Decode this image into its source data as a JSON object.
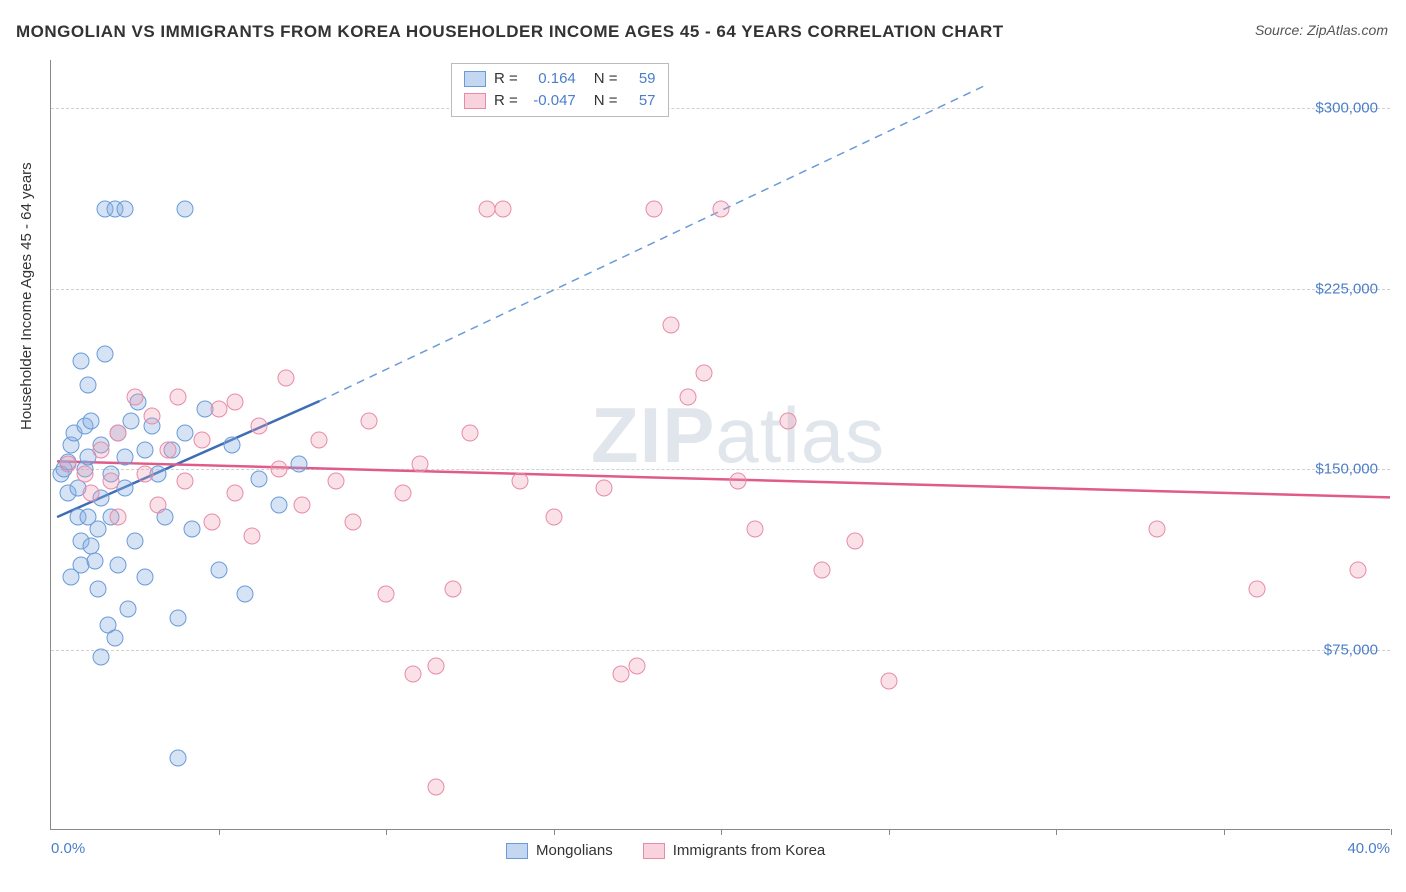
{
  "title": "MONGOLIAN VS IMMIGRANTS FROM KOREA HOUSEHOLDER INCOME AGES 45 - 64 YEARS CORRELATION CHART",
  "source": "Source: ZipAtlas.com",
  "watermark": {
    "prefix": "ZIP",
    "suffix": "atlas"
  },
  "ylabel": "Householder Income Ages 45 - 64 years",
  "chart": {
    "type": "scatter",
    "background_color": "#ffffff",
    "grid_color": "#d0d0d0",
    "axis_color": "#888888",
    "x": {
      "min": 0.0,
      "max": 40.0,
      "tick_label_min": "0.0%",
      "tick_label_max": "40.0%",
      "tick_positions_pct": [
        5,
        10,
        15,
        20,
        25,
        30,
        35,
        40
      ],
      "label_color": "#4a7ec9",
      "label_fontsize": 15
    },
    "y": {
      "min": 0,
      "max": 320000,
      "gridlines": [
        75000,
        150000,
        225000,
        300000
      ],
      "tick_labels": [
        "$75,000",
        "$150,000",
        "$225,000",
        "$300,000"
      ],
      "label_color": "#4a7ec9",
      "label_fontsize": 15
    },
    "series": [
      {
        "id": "a",
        "name": "Mongolians",
        "marker_fill": "rgba(135,175,225,0.35)",
        "marker_stroke": "#6a9bd8",
        "marker_radius": 8.5,
        "line_color": "#3e6db5",
        "line_width": 2.5,
        "dash_color": "#6a9bd8",
        "R": "0.164",
        "N": "59",
        "trend": {
          "x1_pct": 0.2,
          "y1": 130000,
          "x2_pct": 8.0,
          "y2": 178000,
          "dash_x2_pct": 28.0,
          "dash_y2": 310000
        },
        "points_pct_y": [
          [
            0.3,
            148000
          ],
          [
            0.4,
            150000
          ],
          [
            0.5,
            153000
          ],
          [
            0.5,
            140000
          ],
          [
            0.6,
            160000
          ],
          [
            0.7,
            165000
          ],
          [
            0.8,
            130000
          ],
          [
            0.8,
            142000
          ],
          [
            0.9,
            110000
          ],
          [
            0.9,
            120000
          ],
          [
            1.0,
            168000
          ],
          [
            1.0,
            150000
          ],
          [
            1.1,
            155000
          ],
          [
            1.1,
            130000
          ],
          [
            1.2,
            118000
          ],
          [
            1.2,
            170000
          ],
          [
            1.3,
            112000
          ],
          [
            1.4,
            125000
          ],
          [
            1.4,
            100000
          ],
          [
            1.5,
            138000
          ],
          [
            1.5,
            160000
          ],
          [
            1.6,
            198000
          ],
          [
            1.7,
            85000
          ],
          [
            1.8,
            130000
          ],
          [
            1.8,
            148000
          ],
          [
            1.9,
            80000
          ],
          [
            2.0,
            165000
          ],
          [
            2.0,
            110000
          ],
          [
            2.2,
            142000
          ],
          [
            2.2,
            155000
          ],
          [
            2.3,
            92000
          ],
          [
            2.4,
            170000
          ],
          [
            2.5,
            120000
          ],
          [
            2.6,
            178000
          ],
          [
            2.8,
            105000
          ],
          [
            2.8,
            158000
          ],
          [
            3.0,
            168000
          ],
          [
            3.2,
            148000
          ],
          [
            3.4,
            130000
          ],
          [
            3.6,
            158000
          ],
          [
            3.8,
            88000
          ],
          [
            4.0,
            165000
          ],
          [
            4.2,
            125000
          ],
          [
            4.6,
            175000
          ],
          [
            5.0,
            108000
          ],
          [
            5.4,
            160000
          ],
          [
            5.8,
            98000
          ],
          [
            6.2,
            146000
          ],
          [
            6.8,
            135000
          ],
          [
            7.4,
            152000
          ],
          [
            1.6,
            258000
          ],
          [
            1.9,
            258000
          ],
          [
            2.2,
            258000
          ],
          [
            4.0,
            258000
          ],
          [
            0.9,
            195000
          ],
          [
            1.1,
            185000
          ],
          [
            3.8,
            30000
          ],
          [
            1.5,
            72000
          ],
          [
            0.6,
            105000
          ]
        ]
      },
      {
        "id": "b",
        "name": "Immigrants from Korea",
        "marker_fill": "rgba(240,155,180,0.30)",
        "marker_stroke": "#e88ba8",
        "marker_radius": 8.5,
        "line_color": "#e05a8a",
        "line_width": 2.5,
        "R": "-0.047",
        "N": "57",
        "trend": {
          "x1_pct": 0.2,
          "y1": 153000,
          "x2_pct": 40.0,
          "y2": 138000
        },
        "points_pct_y": [
          [
            0.5,
            152000
          ],
          [
            1.0,
            148000
          ],
          [
            1.2,
            140000
          ],
          [
            1.5,
            158000
          ],
          [
            1.8,
            145000
          ],
          [
            2.0,
            165000
          ],
          [
            2.0,
            130000
          ],
          [
            2.5,
            180000
          ],
          [
            2.8,
            148000
          ],
          [
            3.0,
            172000
          ],
          [
            3.2,
            135000
          ],
          [
            3.5,
            158000
          ],
          [
            3.8,
            180000
          ],
          [
            4.0,
            145000
          ],
          [
            4.5,
            162000
          ],
          [
            4.8,
            128000
          ],
          [
            5.0,
            175000
          ],
          [
            5.5,
            140000
          ],
          [
            5.5,
            178000
          ],
          [
            6.0,
            122000
          ],
          [
            6.2,
            168000
          ],
          [
            6.8,
            150000
          ],
          [
            7.0,
            188000
          ],
          [
            7.5,
            135000
          ],
          [
            8.0,
            162000
          ],
          [
            8.5,
            145000
          ],
          [
            9.0,
            128000
          ],
          [
            9.5,
            170000
          ],
          [
            10.0,
            98000
          ],
          [
            10.5,
            140000
          ],
          [
            10.8,
            65000
          ],
          [
            11.0,
            152000
          ],
          [
            11.5,
            68000
          ],
          [
            12.0,
            100000
          ],
          [
            12.5,
            165000
          ],
          [
            11.5,
            18000
          ],
          [
            13.0,
            258000
          ],
          [
            13.5,
            258000
          ],
          [
            14.0,
            145000
          ],
          [
            15.0,
            130000
          ],
          [
            16.5,
            142000
          ],
          [
            17.0,
            65000
          ],
          [
            17.5,
            68000
          ],
          [
            18.0,
            258000
          ],
          [
            18.5,
            210000
          ],
          [
            19.0,
            180000
          ],
          [
            19.5,
            190000
          ],
          [
            20.0,
            258000
          ],
          [
            20.5,
            145000
          ],
          [
            21.0,
            125000
          ],
          [
            22.0,
            170000
          ],
          [
            23.0,
            108000
          ],
          [
            24.0,
            120000
          ],
          [
            25.0,
            62000
          ],
          [
            33.0,
            125000
          ],
          [
            36.0,
            100000
          ],
          [
            39.0,
            108000
          ]
        ]
      }
    ]
  },
  "legend_top": {
    "rows": [
      {
        "swatch": "a",
        "r_label": "R =",
        "r_val": "0.164",
        "n_label": "N =",
        "n_val": "59"
      },
      {
        "swatch": "b",
        "r_label": "R =",
        "r_val": "-0.047",
        "n_label": "N =",
        "n_val": "57"
      }
    ]
  },
  "legend_bottom": {
    "items": [
      {
        "swatch": "a",
        "label": "Mongolians"
      },
      {
        "swatch": "b",
        "label": "Immigrants from Korea"
      }
    ]
  }
}
